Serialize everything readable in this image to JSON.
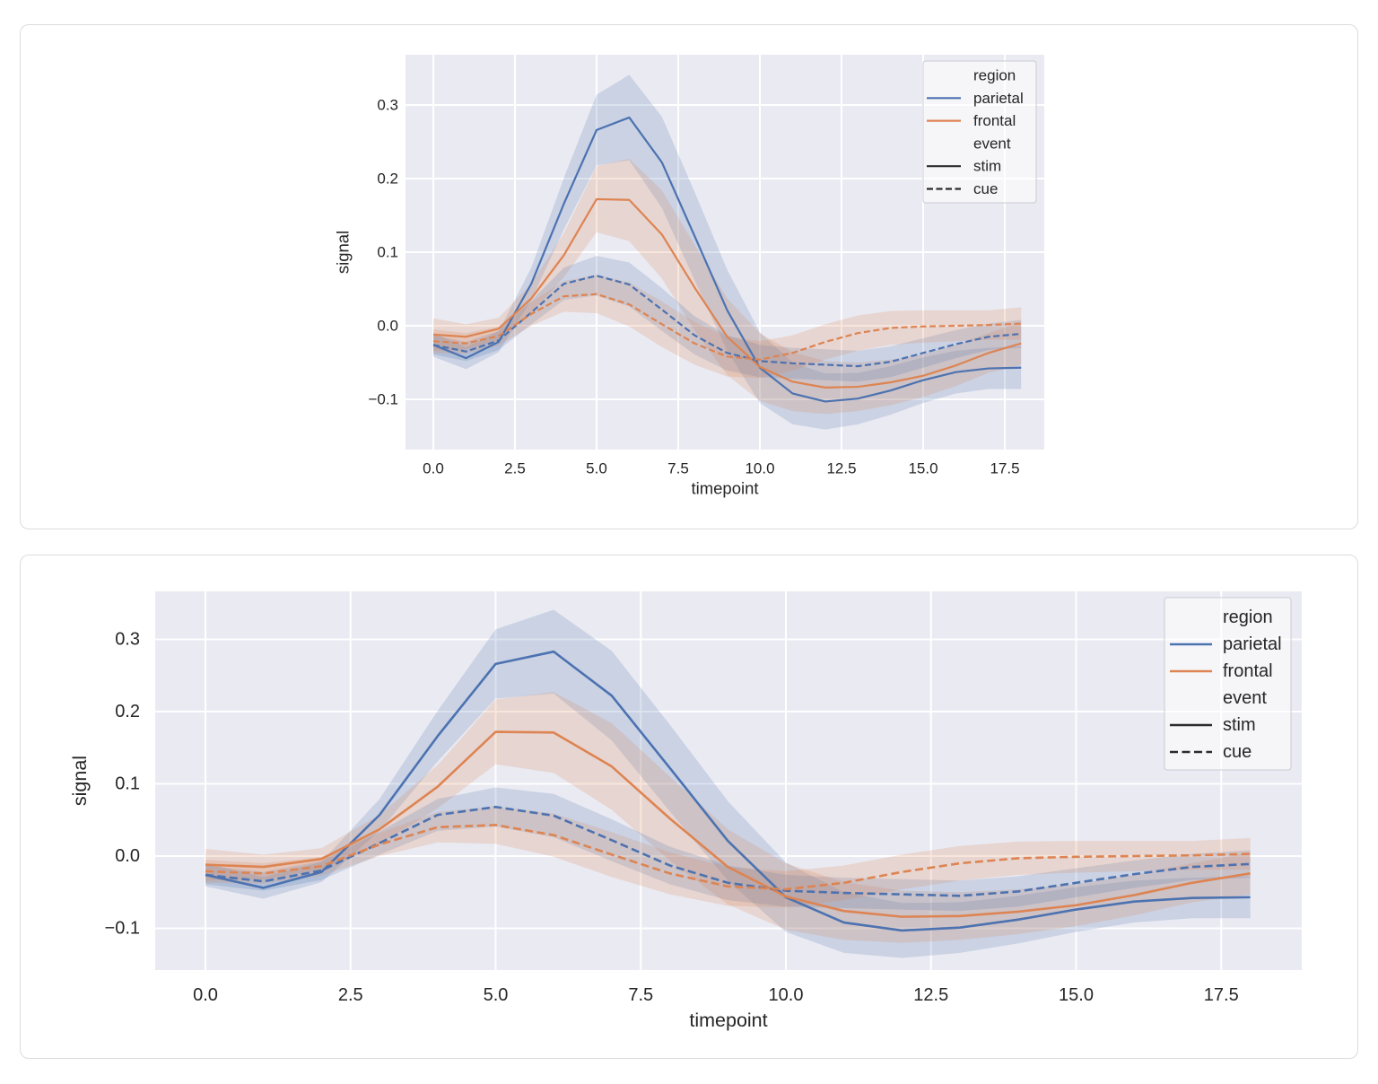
{
  "page": {
    "background": "#ffffff",
    "card_border": "#dcdce0"
  },
  "chart_data": [
    {
      "type": "line",
      "title": "",
      "xlabel": "timepoint",
      "ylabel": "signal",
      "background": "#eaeaf2",
      "grid": true,
      "gridcolor": "#ffffff",
      "text_color": "#262626",
      "band_alpha": 0.2,
      "xlim": [
        -0.85,
        18.7
      ],
      "ylim": [
        -0.168,
        0.368
      ],
      "xticks": [
        0,
        2.5,
        5,
        7.5,
        10,
        12.5,
        15,
        17.5
      ],
      "xtick_labels": [
        "0.0",
        "2.5",
        "5.0",
        "7.5",
        "10.0",
        "12.5",
        "15.0",
        "17.5"
      ],
      "yticks": [
        0.3,
        0.2,
        0.1,
        0,
        -0.1
      ],
      "ytick_labels": [
        "0.3",
        "0.2",
        "0.1",
        "0.0",
        "−0.1"
      ],
      "x": [
        0,
        1,
        2,
        3,
        4,
        5,
        6,
        7,
        8,
        9,
        10,
        11,
        12,
        13,
        14,
        15,
        16,
        17,
        18
      ],
      "legend": {
        "position": "upper right",
        "groups": [
          {
            "title": "region",
            "items": [
              {
                "label": "parietal",
                "color": "#4c72b0",
                "dashed": false
              },
              {
                "label": "frontal",
                "color": "#dd8452",
                "dashed": false
              }
            ]
          },
          {
            "title": "event",
            "items": [
              {
                "label": "stim",
                "color": "#2b2b2b",
                "dashed": false
              },
              {
                "label": "cue",
                "color": "#2b2b2b",
                "dashed": true
              }
            ]
          }
        ]
      },
      "series": [
        {
          "name": "parietal-stim",
          "region": "parietal",
          "event": "stim",
          "color": "#4c72b0",
          "dashed": false,
          "values": [
            -0.026,
            -0.044,
            -0.022,
            0.057,
            0.166,
            0.266,
            0.283,
            0.222,
            0.122,
            0.021,
            -0.057,
            -0.092,
            -0.103,
            -0.099,
            -0.088,
            -0.074,
            -0.063,
            -0.058,
            -0.057
          ],
          "ci": [
            0.016,
            0.015,
            0.014,
            0.022,
            0.035,
            0.048,
            0.058,
            0.062,
            0.06,
            0.055,
            0.048,
            0.042,
            0.038,
            0.035,
            0.033,
            0.031,
            0.029,
            0.028,
            0.029
          ]
        },
        {
          "name": "frontal-stim",
          "region": "frontal",
          "event": "stim",
          "color": "#dd8452",
          "dashed": false,
          "values": [
            -0.012,
            -0.015,
            -0.004,
            0.037,
            0.096,
            0.172,
            0.171,
            0.124,
            0.052,
            -0.015,
            -0.056,
            -0.076,
            -0.084,
            -0.083,
            -0.077,
            -0.068,
            -0.054,
            -0.037,
            -0.024
          ],
          "ci": [
            0.022,
            0.017,
            0.015,
            0.02,
            0.03,
            0.045,
            0.056,
            0.06,
            0.058,
            0.052,
            0.046,
            0.04,
            0.036,
            0.033,
            0.031,
            0.029,
            0.028,
            0.027,
            0.029
          ]
        },
        {
          "name": "parietal-cue",
          "region": "parietal",
          "event": "cue",
          "color": "#4c72b0",
          "dashed": true,
          "values": [
            -0.026,
            -0.035,
            -0.02,
            0.018,
            0.057,
            0.068,
            0.056,
            0.022,
            -0.013,
            -0.037,
            -0.048,
            -0.051,
            -0.053,
            -0.055,
            -0.049,
            -0.037,
            -0.025,
            -0.015,
            -0.011
          ],
          "ci": [
            0.013,
            0.013,
            0.013,
            0.016,
            0.022,
            0.027,
            0.03,
            0.029,
            0.026,
            0.024,
            0.022,
            0.021,
            0.021,
            0.021,
            0.021,
            0.02,
            0.019,
            0.018,
            0.019
          ]
        },
        {
          "name": "frontal-cue",
          "region": "frontal",
          "event": "cue",
          "color": "#dd8452",
          "dashed": true,
          "values": [
            -0.021,
            -0.024,
            -0.014,
            0.016,
            0.04,
            0.043,
            0.029,
            0.002,
            -0.024,
            -0.042,
            -0.046,
            -0.037,
            -0.022,
            -0.01,
            -0.003,
            -0.001,
            0.0,
            0.001,
            0.003
          ],
          "ci": [
            0.016,
            0.014,
            0.013,
            0.016,
            0.021,
            0.026,
            0.03,
            0.031,
            0.029,
            0.027,
            0.025,
            0.024,
            0.024,
            0.024,
            0.023,
            0.022,
            0.021,
            0.02,
            0.022
          ]
        }
      ]
    },
    {
      "type": "line",
      "title": "",
      "xlabel": "timepoint",
      "ylabel": "signal",
      "background": "#eaeaf2",
      "grid": true,
      "gridcolor": "#ffffff",
      "text_color": "#262626",
      "band_alpha": 0.2,
      "xlim": [
        -0.87,
        18.9
      ],
      "ylim": [
        -0.158,
        0.366
      ],
      "xticks": [
        0,
        2.5,
        5,
        7.5,
        10,
        12.5,
        15,
        17.5
      ],
      "xtick_labels": [
        "0.0",
        "2.5",
        "5.0",
        "7.5",
        "10.0",
        "12.5",
        "15.0",
        "17.5"
      ],
      "yticks": [
        0.3,
        0.2,
        0.1,
        0,
        -0.1
      ],
      "ytick_labels": [
        "0.3",
        "0.2",
        "0.1",
        "0.0",
        "−0.1"
      ],
      "x": [
        0,
        1,
        2,
        3,
        4,
        5,
        6,
        7,
        8,
        9,
        10,
        11,
        12,
        13,
        14,
        15,
        16,
        17,
        18
      ],
      "legend": {
        "position": "upper right",
        "groups": [
          {
            "title": "region",
            "items": [
              {
                "label": "parietal",
                "color": "#4c72b0",
                "dashed": false
              },
              {
                "label": "frontal",
                "color": "#dd8452",
                "dashed": false
              }
            ]
          },
          {
            "title": "event",
            "items": [
              {
                "label": "stim",
                "color": "#2b2b2b",
                "dashed": false
              },
              {
                "label": "cue",
                "color": "#2b2b2b",
                "dashed": true
              }
            ]
          }
        ]
      },
      "series": [
        {
          "name": "parietal-stim",
          "region": "parietal",
          "event": "stim",
          "color": "#4c72b0",
          "dashed": false,
          "values": [
            -0.026,
            -0.044,
            -0.022,
            0.057,
            0.166,
            0.266,
            0.283,
            0.222,
            0.122,
            0.021,
            -0.057,
            -0.092,
            -0.103,
            -0.099,
            -0.088,
            -0.074,
            -0.063,
            -0.058,
            -0.057
          ],
          "ci": [
            0.016,
            0.015,
            0.014,
            0.022,
            0.035,
            0.048,
            0.058,
            0.062,
            0.06,
            0.055,
            0.048,
            0.042,
            0.038,
            0.035,
            0.033,
            0.031,
            0.029,
            0.028,
            0.029
          ]
        },
        {
          "name": "frontal-stim",
          "region": "frontal",
          "event": "stim",
          "color": "#dd8452",
          "dashed": false,
          "values": [
            -0.012,
            -0.015,
            -0.004,
            0.037,
            0.096,
            0.172,
            0.171,
            0.124,
            0.052,
            -0.015,
            -0.056,
            -0.076,
            -0.084,
            -0.083,
            -0.077,
            -0.068,
            -0.054,
            -0.037,
            -0.024
          ],
          "ci": [
            0.022,
            0.017,
            0.015,
            0.02,
            0.03,
            0.045,
            0.056,
            0.06,
            0.058,
            0.052,
            0.046,
            0.04,
            0.036,
            0.033,
            0.031,
            0.029,
            0.028,
            0.027,
            0.029
          ]
        },
        {
          "name": "parietal-cue",
          "region": "parietal",
          "event": "cue",
          "color": "#4c72b0",
          "dashed": true,
          "values": [
            -0.026,
            -0.035,
            -0.02,
            0.018,
            0.057,
            0.068,
            0.056,
            0.022,
            -0.013,
            -0.037,
            -0.048,
            -0.051,
            -0.053,
            -0.055,
            -0.049,
            -0.037,
            -0.025,
            -0.015,
            -0.011
          ],
          "ci": [
            0.013,
            0.013,
            0.013,
            0.016,
            0.022,
            0.027,
            0.03,
            0.029,
            0.026,
            0.024,
            0.022,
            0.021,
            0.021,
            0.021,
            0.021,
            0.02,
            0.019,
            0.018,
            0.019
          ]
        },
        {
          "name": "frontal-cue",
          "region": "frontal",
          "event": "cue",
          "color": "#dd8452",
          "dashed": true,
          "values": [
            -0.021,
            -0.024,
            -0.014,
            0.016,
            0.04,
            0.043,
            0.029,
            0.002,
            -0.024,
            -0.042,
            -0.046,
            -0.037,
            -0.022,
            -0.01,
            -0.003,
            -0.001,
            0.0,
            0.001,
            0.003
          ],
          "ci": [
            0.016,
            0.014,
            0.013,
            0.016,
            0.021,
            0.026,
            0.03,
            0.031,
            0.029,
            0.027,
            0.025,
            0.024,
            0.024,
            0.024,
            0.023,
            0.022,
            0.021,
            0.02,
            0.022
          ]
        }
      ]
    }
  ]
}
